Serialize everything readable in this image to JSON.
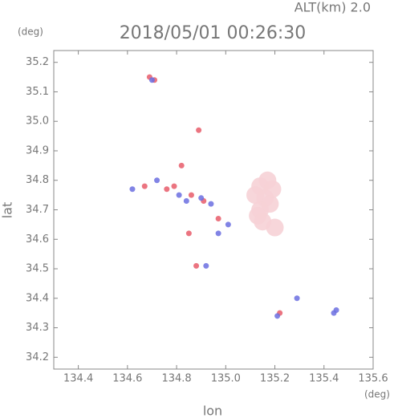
{
  "chart_data": {
    "type": "scatter",
    "title": "2018/05/01 00:26:30",
    "annotation": "ALT(km) 2.0",
    "y_unit": "(deg)",
    "x_unit": "(deg)",
    "x_label": "lon",
    "y_label": "lat",
    "xlim": [
      134.3,
      135.6
    ],
    "ylim": [
      34.16,
      35.24
    ],
    "xticks": [
      134.4,
      134.6,
      134.8,
      {
        "value": 135,
        "label": "135.0"
      },
      135.2,
      135.4,
      135.6
    ],
    "yticks": [
      34.2,
      34.3,
      34.4,
      34.5,
      34.6,
      34.7,
      34.8,
      34.9,
      {
        "value": 35,
        "label": "35.0"
      },
      35.1,
      35.2
    ],
    "series": [
      {
        "color": "#f6d2d6",
        "x": [
          135.14,
          135.16,
          135.14,
          135.18,
          135.15,
          135.2,
          135.12,
          135.17,
          135.13,
          135.19
        ],
        "y": [
          34.78,
          34.74,
          34.7,
          34.72,
          34.66,
          34.64,
          34.75,
          34.8,
          34.68,
          34.77
        ]
      },
      {
        "color": "#e85c6a",
        "x": [
          134.69,
          134.71,
          134.89,
          134.79,
          134.82,
          134.76,
          134.67,
          134.86,
          134.91,
          134.97,
          134.88,
          135.22,
          134.85
        ],
        "y": [
          35.15,
          35.14,
          34.97,
          34.78,
          34.85,
          34.77,
          34.78,
          34.75,
          34.73,
          34.67,
          34.51,
          34.35,
          34.62
        ]
      },
      {
        "color": "#6b6fe0",
        "x": [
          134.7,
          134.81,
          134.84,
          134.9,
          134.94,
          135.01,
          134.92,
          135.29,
          135.44,
          135.45,
          135.21,
          134.62,
          134.72,
          134.97
        ],
        "y": [
          35.14,
          34.75,
          34.73,
          34.74,
          34.72,
          34.65,
          34.51,
          34.4,
          34.35,
          34.36,
          34.34,
          34.77,
          34.8,
          34.62
        ]
      }
    ]
  }
}
